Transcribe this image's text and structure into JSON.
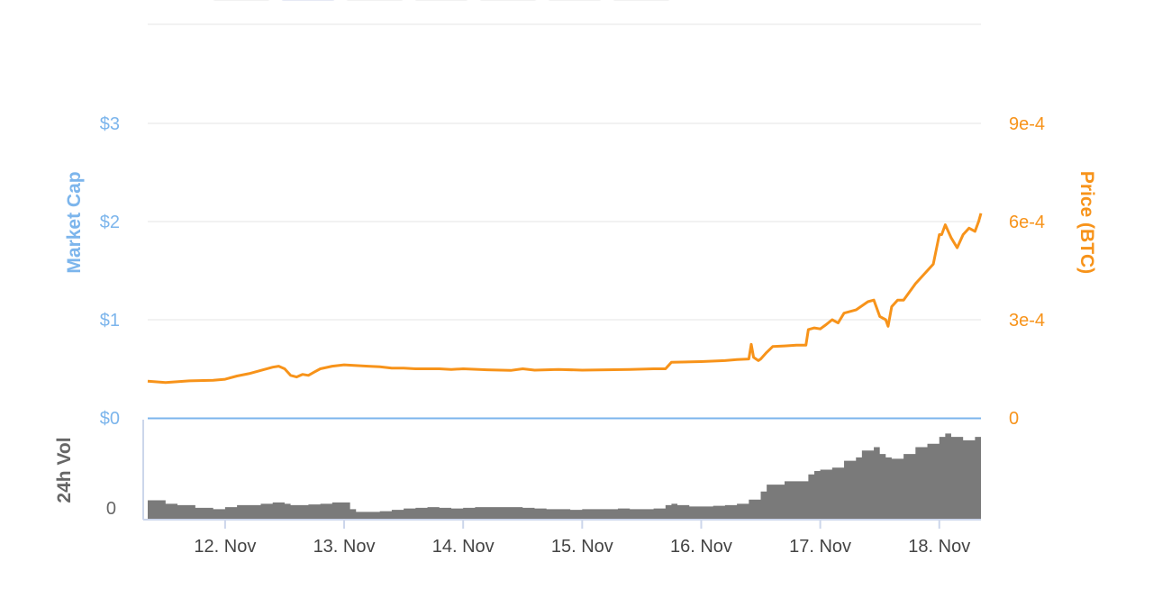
{
  "chart_data": {
    "type": "line",
    "colors": {
      "market_cap": "#7cb5ec",
      "price": "#f7931a",
      "volume": "#7a7a7a",
      "grid": "#e6e6e6",
      "ticks": "#666666"
    },
    "left_axis": {
      "title": "Market Cap",
      "ticks": [
        "$0",
        "$1",
        "$2",
        "$3"
      ],
      "tick_values": [
        0,
        1,
        2,
        3
      ]
    },
    "right_axis": {
      "title": "Price (BTC)",
      "ticks": [
        "0",
        "3e-4",
        "6e-4",
        "9e-4"
      ],
      "tick_values": [
        0,
        0.0003,
        0.0006,
        0.0009
      ]
    },
    "volume_axis": {
      "title": "24h Vol",
      "ticks": [
        "0"
      ]
    },
    "x_axis": {
      "labels": [
        "12. Nov",
        "13. Nov",
        "14. Nov",
        "15. Nov",
        "16. Nov",
        "17. Nov",
        "18. Nov"
      ],
      "range": [
        11.35,
        18.35
      ]
    },
    "series": [
      {
        "name": "Price (BTC)",
        "x": [
          11.35,
          11.5,
          11.7,
          11.9,
          12.0,
          12.1,
          12.2,
          12.3,
          12.4,
          12.45,
          12.5,
          12.55,
          12.6,
          12.65,
          12.7,
          12.75,
          12.8,
          12.9,
          13.0,
          13.1,
          13.2,
          13.3,
          13.4,
          13.5,
          13.6,
          13.7,
          13.8,
          13.9,
          14.0,
          14.2,
          14.4,
          14.5,
          14.6,
          14.8,
          15.0,
          15.2,
          15.4,
          15.6,
          15.7,
          15.75,
          16.0,
          16.2,
          16.3,
          16.4,
          16.42,
          16.44,
          16.46,
          16.48,
          16.5,
          16.55,
          16.6,
          16.7,
          16.8,
          16.88,
          16.9,
          16.95,
          17.0,
          17.05,
          17.1,
          17.15,
          17.2,
          17.3,
          17.4,
          17.45,
          17.5,
          17.55,
          17.57,
          17.6,
          17.65,
          17.7,
          17.8,
          17.9,
          17.95,
          18.0,
          18.02,
          18.05,
          18.1,
          18.15,
          18.2,
          18.25,
          18.3,
          18.33,
          18.35
        ],
        "values": [
          0.000112,
          0.000108,
          0.000113,
          0.000115,
          0.000118,
          0.000128,
          0.000135,
          0.000145,
          0.000155,
          0.000158,
          0.00015,
          0.00013,
          0.000125,
          0.000133,
          0.00013,
          0.00014,
          0.00015,
          0.000158,
          0.000162,
          0.00016,
          0.000158,
          0.000156,
          0.000152,
          0.000152,
          0.00015,
          0.00015,
          0.00015,
          0.000148,
          0.00015,
          0.000147,
          0.000145,
          0.00015,
          0.000146,
          0.000148,
          0.000146,
          0.000147,
          0.000148,
          0.00015,
          0.00015,
          0.00017,
          0.000172,
          0.000175,
          0.000178,
          0.00018,
          0.000225,
          0.000185,
          0.00018,
          0.000175,
          0.00018,
          0.0002,
          0.000218,
          0.00022,
          0.000222,
          0.000222,
          0.00027,
          0.000275,
          0.000272,
          0.000285,
          0.0003,
          0.00029,
          0.00032,
          0.00033,
          0.000355,
          0.00036,
          0.00031,
          0.0003,
          0.00028,
          0.00034,
          0.00036,
          0.00036,
          0.00041,
          0.00045,
          0.00047,
          0.00056,
          0.00056,
          0.00059,
          0.00055,
          0.00052,
          0.00056,
          0.00058,
          0.00057,
          0.0006,
          0.000625
        ]
      },
      {
        "name": "24h Vol",
        "x": [
          11.35,
          11.5,
          11.6,
          11.75,
          11.9,
          12.0,
          12.1,
          12.3,
          12.4,
          12.5,
          12.55,
          12.6,
          12.7,
          12.8,
          12.9,
          13.0,
          13.05,
          13.1,
          13.2,
          13.3,
          13.4,
          13.5,
          13.6,
          13.7,
          13.8,
          13.9,
          14.0,
          14.1,
          14.2,
          14.3,
          14.4,
          14.5,
          14.6,
          14.7,
          14.8,
          14.9,
          15.0,
          15.1,
          15.2,
          15.3,
          15.4,
          15.5,
          15.6,
          15.7,
          15.75,
          15.8,
          15.9,
          16.0,
          16.1,
          16.2,
          16.3,
          16.4,
          16.5,
          16.55,
          16.6,
          16.7,
          16.8,
          16.9,
          16.95,
          17.0,
          17.1,
          17.2,
          17.3,
          17.35,
          17.4,
          17.45,
          17.5,
          17.55,
          17.6,
          17.7,
          17.8,
          17.9,
          18.0,
          18.05,
          18.1,
          18.2,
          18.3,
          18.35
        ],
        "values": [
          0.27,
          0.22,
          0.2,
          0.16,
          0.14,
          0.17,
          0.2,
          0.22,
          0.24,
          0.22,
          0.2,
          0.2,
          0.21,
          0.22,
          0.24,
          0.24,
          0.14,
          0.1,
          0.1,
          0.11,
          0.13,
          0.15,
          0.16,
          0.17,
          0.16,
          0.15,
          0.16,
          0.17,
          0.17,
          0.17,
          0.17,
          0.16,
          0.15,
          0.14,
          0.14,
          0.13,
          0.14,
          0.14,
          0.14,
          0.15,
          0.14,
          0.14,
          0.15,
          0.2,
          0.22,
          0.2,
          0.18,
          0.18,
          0.19,
          0.2,
          0.22,
          0.28,
          0.4,
          0.5,
          0.5,
          0.55,
          0.55,
          0.65,
          0.7,
          0.72,
          0.75,
          0.85,
          0.9,
          1.0,
          1.0,
          1.05,
          0.95,
          0.9,
          0.88,
          0.95,
          1.05,
          1.1,
          1.2,
          1.25,
          1.2,
          1.15,
          1.2,
          1.2
        ]
      }
    ]
  }
}
